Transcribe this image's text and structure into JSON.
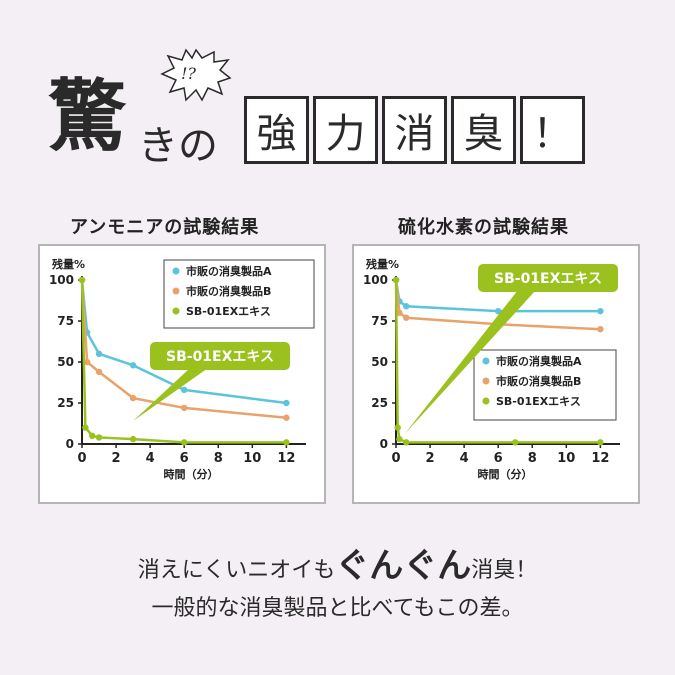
{
  "heading": {
    "big_kanji": "驚",
    "small_kana": "きの",
    "exclamation": "!?",
    "boxed_chars": [
      "強",
      "力",
      "消",
      "臭",
      "！"
    ]
  },
  "colors": {
    "a": "#5bc4dc",
    "b": "#e8a26a",
    "c": "#9ac11e"
  },
  "chart_data": [
    {
      "type": "line",
      "title": "アンモニアの試験結果",
      "ylabel": "残量%",
      "xlabel": "時間（分）",
      "xlim": [
        0,
        12.8
      ],
      "ylim": [
        0,
        100
      ],
      "xticks": [
        0,
        2,
        4,
        6,
        8,
        10,
        12
      ],
      "yticks": [
        0,
        25,
        50,
        75,
        100
      ],
      "legend_position": "top-right",
      "callout": "SB-01EXエキス",
      "series": [
        {
          "name": "市販の消臭製品A",
          "color": "#5bc4dc",
          "x": [
            0,
            0.3,
            1,
            3,
            6,
            12
          ],
          "y": [
            100,
            68,
            55,
            48,
            33,
            25
          ]
        },
        {
          "name": "市販の消臭製品B",
          "color": "#e8a26a",
          "x": [
            0,
            0.3,
            1,
            3,
            6,
            12
          ],
          "y": [
            100,
            50,
            44,
            28,
            22,
            16
          ]
        },
        {
          "name": "SB-01EXエキス",
          "color": "#9ac11e",
          "x": [
            0,
            0.2,
            0.6,
            1,
            3,
            6,
            12
          ],
          "y": [
            100,
            10,
            5,
            4,
            3,
            1,
            1
          ]
        }
      ]
    },
    {
      "type": "line",
      "title": "硫化水素の試験結果",
      "ylabel": "残量%",
      "xlabel": "時間（分）",
      "xlim": [
        0,
        12.8
      ],
      "ylim": [
        0,
        100
      ],
      "xticks": [
        0,
        2,
        4,
        6,
        8,
        10,
        12
      ],
      "yticks": [
        0,
        25,
        50,
        75,
        100
      ],
      "legend_position": "center-right",
      "callout": "SB-01EXエキス",
      "series": [
        {
          "name": "市販の消臭製品A",
          "color": "#5bc4dc",
          "x": [
            0,
            0.2,
            0.6,
            6,
            12
          ],
          "y": [
            100,
            87,
            84,
            81,
            81
          ]
        },
        {
          "name": "市販の消臭製品B",
          "color": "#e8a26a",
          "x": [
            0,
            0.2,
            0.6,
            6,
            12
          ],
          "y": [
            100,
            80,
            77,
            73,
            70
          ]
        },
        {
          "name": "SB-01EXエキス",
          "color": "#9ac11e",
          "x": [
            0,
            0.1,
            0.2,
            0.6,
            7,
            12
          ],
          "y": [
            100,
            10,
            3,
            1,
            1,
            1
          ]
        }
      ]
    }
  ],
  "footer": {
    "line1_pre": "消えにくいニオイも",
    "line1_em": "ぐんぐん",
    "line1_post": "消臭！",
    "line2": "一般的な消臭製品と比べてもこの差。"
  }
}
